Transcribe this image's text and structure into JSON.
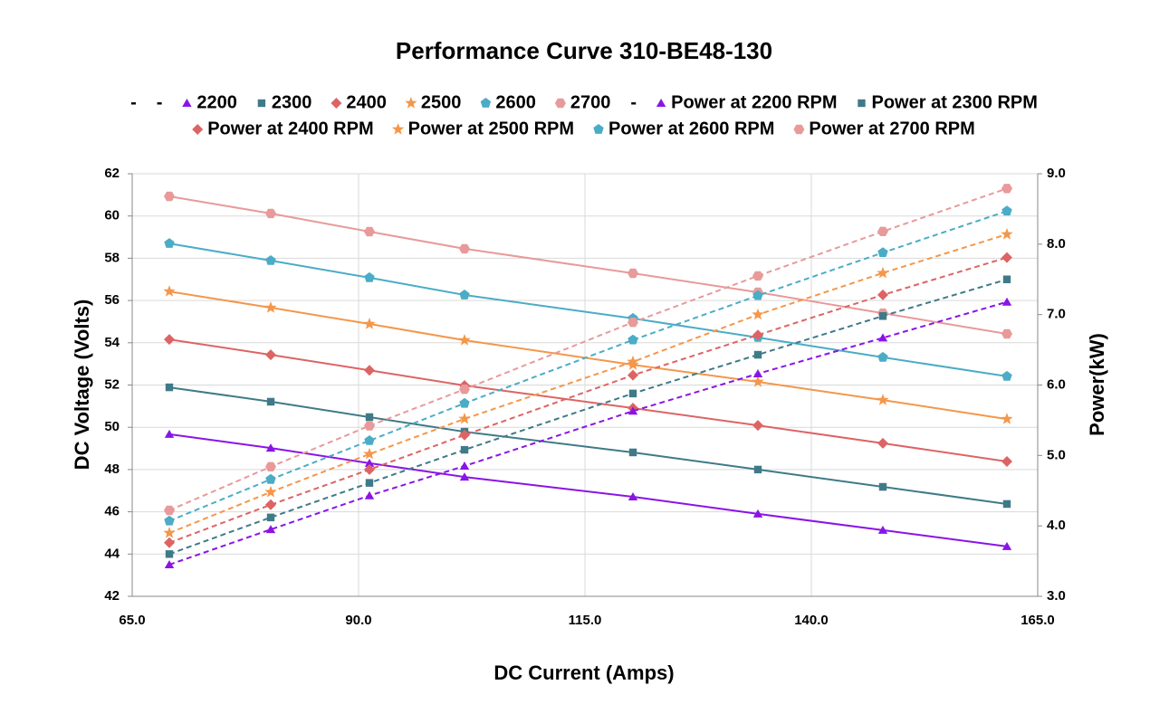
{
  "chart_data": {
    "type": "line",
    "title": "Performance Curve 310-BE48-130",
    "x_label": "DC Current (Amps)",
    "y_label": "DC Voltage (Volts)",
    "y2_label": "Power(kW)",
    "x": [
      69.1,
      80.3,
      91.2,
      101.7,
      120.3,
      134.1,
      147.9,
      161.6
    ],
    "xlim": [
      65,
      165
    ],
    "xticks": [
      {
        "value": 65,
        "label": "65.0"
      },
      {
        "value": 90,
        "label": "90.0"
      },
      {
        "value": 115,
        "label": "115.0"
      },
      {
        "value": 140,
        "label": "140.0"
      },
      {
        "value": 165,
        "label": "165.0"
      }
    ],
    "ylim": [
      42,
      62
    ],
    "yticks": [
      42,
      44,
      46,
      48,
      50,
      52,
      54,
      56,
      58,
      60,
      62
    ],
    "y2lim": [
      3,
      9
    ],
    "y2ticks": [
      {
        "value": 3,
        "label": "3.0"
      },
      {
        "value": 4,
        "label": "4.0"
      },
      {
        "value": 5,
        "label": "5.0"
      },
      {
        "value": 6,
        "label": "6.0"
      },
      {
        "value": 7,
        "label": "7.0"
      },
      {
        "value": 8,
        "label": "8.0"
      },
      {
        "value": 9,
        "label": "9.0"
      }
    ],
    "grid": true,
    "legend": "top",
    "series": [
      {
        "name": "-",
        "color": "#000000",
        "marker": "none",
        "dashed": false,
        "values": [
          null,
          null,
          null,
          null,
          null,
          null,
          null,
          null
        ]
      },
      {
        "name": "-",
        "color": "#000000",
        "marker": "none",
        "dashed": false,
        "values": [
          null,
          null,
          null,
          null,
          null,
          null,
          null,
          null
        ]
      },
      {
        "name": "2200",
        "color": "#8a14e6",
        "marker": "triangle",
        "dashed": false,
        "values": [
          49.67,
          49.02,
          48.3,
          47.65,
          46.71,
          45.9,
          45.13,
          44.36
        ]
      },
      {
        "name": "2300",
        "color": "#3f7a88",
        "marker": "square",
        "dashed": false,
        "values": [
          51.89,
          51.21,
          50.48,
          49.79,
          48.81,
          48.0,
          47.18,
          46.37
        ]
      },
      {
        "name": "2400",
        "color": "#dd6464",
        "marker": "diamond",
        "dashed": false,
        "values": [
          54.16,
          53.43,
          52.7,
          51.98,
          50.91,
          50.09,
          49.24,
          48.38
        ]
      },
      {
        "name": "2500",
        "color": "#f4974a",
        "marker": "star",
        "dashed": false,
        "values": [
          56.43,
          55.66,
          54.89,
          54.12,
          52.96,
          52.15,
          51.29,
          50.39
        ]
      },
      {
        "name": "2600",
        "color": "#4bacc6",
        "marker": "pentagon",
        "dashed": false,
        "values": [
          58.7,
          57.89,
          57.08,
          56.26,
          55.15,
          54.25,
          53.31,
          52.41
        ]
      },
      {
        "name": "2700",
        "color": "#e89a9a",
        "marker": "hexagon",
        "dashed": false,
        "values": [
          60.93,
          60.12,
          59.26,
          58.45,
          57.29,
          56.39,
          55.4,
          54.42
        ]
      },
      {
        "name": "-",
        "color": "#000000",
        "marker": "none",
        "dashed": true,
        "axis": "y2",
        "values": [
          null,
          null,
          null,
          null,
          null,
          null,
          null,
          null
        ]
      },
      {
        "name": "Power at 2200 RPM",
        "color": "#8a14e6",
        "marker": "triangle",
        "dashed": true,
        "axis": "y2",
        "values": [
          3.45,
          3.95,
          4.43,
          4.85,
          5.63,
          6.16,
          6.67,
          7.18
        ]
      },
      {
        "name": "Power at 2300 RPM",
        "color": "#3f7a88",
        "marker": "square",
        "dashed": true,
        "axis": "y2",
        "values": [
          3.6,
          4.12,
          4.61,
          5.08,
          5.88,
          6.43,
          6.98,
          7.5
        ]
      },
      {
        "name": "Power at 2400 RPM",
        "color": "#dd6464",
        "marker": "diamond",
        "dashed": true,
        "axis": "y2",
        "values": [
          3.76,
          4.3,
          4.8,
          5.29,
          6.14,
          6.71,
          7.28,
          7.81
        ]
      },
      {
        "name": "Power at 2500 RPM",
        "color": "#f4974a",
        "marker": "star",
        "dashed": true,
        "axis": "y2",
        "values": [
          3.9,
          4.48,
          5.02,
          5.52,
          6.33,
          7.0,
          7.59,
          8.14
        ]
      },
      {
        "name": "Power at 2600 RPM",
        "color": "#4bacc6",
        "marker": "pentagon",
        "dashed": true,
        "axis": "y2",
        "values": [
          4.07,
          4.66,
          5.21,
          5.74,
          6.64,
          7.27,
          7.88,
          8.47
        ]
      },
      {
        "name": "Power at 2700 RPM",
        "color": "#e89a9a",
        "marker": "hexagon",
        "dashed": true,
        "axis": "y2",
        "values": [
          4.22,
          4.84,
          5.42,
          5.94,
          6.89,
          7.55,
          8.18,
          8.79
        ]
      }
    ]
  }
}
